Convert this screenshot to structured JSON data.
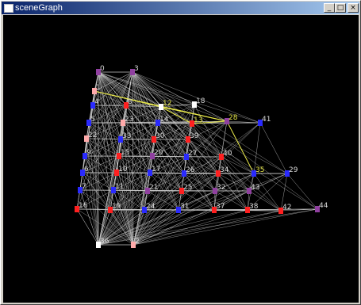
{
  "window": {
    "title": "sceneGraph",
    "minimize_icon": "minimize-icon",
    "maximize_icon": "maximize-icon",
    "close_icon": "close-icon",
    "minimize_glyph": "_",
    "maximize_glyph": "□",
    "close_glyph": "×"
  },
  "graph": {
    "colors": {
      "background": "#000000",
      "edge": "#c8c8c8",
      "highlight": "#e8e84a",
      "label": "#d8d8d8",
      "highlight_label": "#e8e84a",
      "blue": "#2a2aff",
      "red": "#ff2020",
      "pink": "#ffaaaa",
      "purple": "#9040a0",
      "white": "#ffffff"
    },
    "nodes": [
      {
        "id": "0",
        "label": "0",
        "color": "purple"
      },
      {
        "id": "3",
        "label": "3",
        "color": "purple"
      },
      {
        "id": "1",
        "label": "1",
        "color": "pink"
      },
      {
        "id": "12",
        "label": "12",
        "color": "white",
        "highlight": true
      },
      {
        "id": "18",
        "label": "18",
        "color": "white"
      },
      {
        "id": "4",
        "label": "4",
        "color": "blue"
      },
      {
        "id": "8",
        "label": "8",
        "color": "red"
      },
      {
        "id": "13",
        "label": "13",
        "color": "red",
        "highlight": true
      },
      {
        "id": "28",
        "label": "28",
        "color": "purple",
        "highlight": true
      },
      {
        "id": "41",
        "label": "41",
        "color": "blue"
      },
      {
        "id": "5",
        "label": "5",
        "color": "blue"
      },
      {
        "id": "23",
        "label": "23",
        "color": "pink"
      },
      {
        "id": "14",
        "label": "14",
        "color": "blue"
      },
      {
        "id": "22",
        "label": "22",
        "color": "pink"
      },
      {
        "id": "33",
        "label": "33",
        "color": "blue"
      },
      {
        "id": "30",
        "label": "30",
        "color": "red"
      },
      {
        "id": "39",
        "label": "39",
        "color": "red"
      },
      {
        "id": "9",
        "label": "9",
        "color": "blue"
      },
      {
        "id": "15",
        "label": "15",
        "color": "red"
      },
      {
        "id": "20",
        "label": "20",
        "color": "purple"
      },
      {
        "id": "27",
        "label": "27",
        "color": "blue"
      },
      {
        "id": "40",
        "label": "40",
        "color": "red"
      },
      {
        "id": "6",
        "label": "6",
        "color": "blue"
      },
      {
        "id": "10",
        "label": "10",
        "color": "red"
      },
      {
        "id": "17",
        "label": "17",
        "color": "blue"
      },
      {
        "id": "26",
        "label": "26",
        "color": "blue"
      },
      {
        "id": "34",
        "label": "34",
        "color": "red"
      },
      {
        "id": "35",
        "label": "35",
        "color": "blue",
        "highlight": true
      },
      {
        "id": "29",
        "label": "29",
        "color": "blue"
      },
      {
        "id": "7",
        "label": "7",
        "color": "blue"
      },
      {
        "id": "11",
        "label": "11",
        "color": "blue"
      },
      {
        "id": "21",
        "label": "21",
        "color": "purple"
      },
      {
        "id": "25",
        "label": "25",
        "color": "red"
      },
      {
        "id": "32",
        "label": "32",
        "color": "purple"
      },
      {
        "id": "43",
        "label": "43",
        "color": "purple"
      },
      {
        "id": "16",
        "label": "16",
        "color": "red"
      },
      {
        "id": "19",
        "label": "19",
        "color": "red"
      },
      {
        "id": "24",
        "label": "24",
        "color": "blue"
      },
      {
        "id": "31",
        "label": "31",
        "color": "blue"
      },
      {
        "id": "37",
        "label": "37",
        "color": "red"
      },
      {
        "id": "38",
        "label": "38",
        "color": "red"
      },
      {
        "id": "42",
        "label": "42",
        "color": "red"
      },
      {
        "id": "44",
        "label": "44",
        "color": "purple"
      },
      {
        "id": "36",
        "label": "36",
        "color": "white"
      },
      {
        "id": "2",
        "label": "2",
        "color": "pink"
      }
    ],
    "highlighted_path": [
      "1",
      "12",
      "13",
      "28",
      "35"
    ],
    "hubs": [
      "0",
      "3",
      "36",
      "2"
    ]
  }
}
